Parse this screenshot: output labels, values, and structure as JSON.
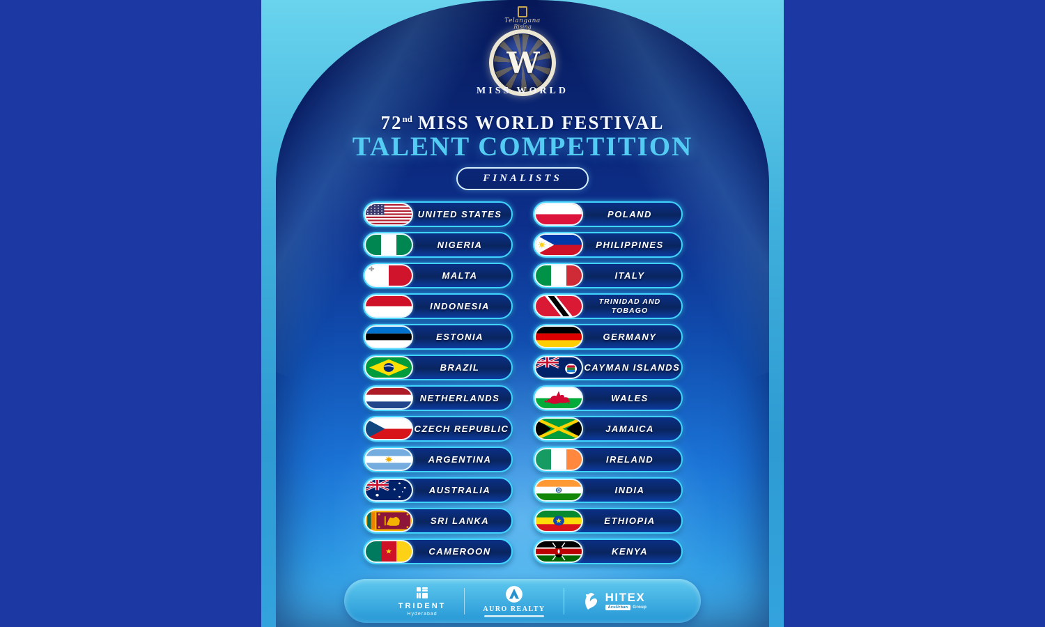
{
  "brand": {
    "crest_line1": "Telangana",
    "crest_line2": "Rising",
    "monogram": "W",
    "wordmark": "MISS WORLD"
  },
  "title": {
    "num": "72",
    "sup": "nd",
    "rest": "MISS WORLD FESTIVAL",
    "line2": "TALENT COMPETITION"
  },
  "badge": {
    "label": "FINALISTS"
  },
  "finalists": {
    "left": [
      {
        "label": "UNITED STATES",
        "flag": "us"
      },
      {
        "label": "NIGERIA",
        "flag": "ng"
      },
      {
        "label": "MALTA",
        "flag": "mt"
      },
      {
        "label": "INDONESIA",
        "flag": "id"
      },
      {
        "label": "ESTONIA",
        "flag": "ee"
      },
      {
        "label": "BRAZIL",
        "flag": "br"
      },
      {
        "label": "NETHERLANDS",
        "flag": "nl"
      },
      {
        "label": "CZECH REPUBLIC",
        "flag": "cz"
      },
      {
        "label": "ARGENTINA",
        "flag": "ar"
      },
      {
        "label": "AUSTRALIA",
        "flag": "au"
      },
      {
        "label": "SRI LANKA",
        "flag": "lk"
      },
      {
        "label": "CAMEROON",
        "flag": "cm"
      }
    ],
    "right": [
      {
        "label": "POLAND",
        "flag": "pl"
      },
      {
        "label": "PHILIPPINES",
        "flag": "ph"
      },
      {
        "label": "ITALY",
        "flag": "it"
      },
      {
        "label": "TRINIDAD AND TOBAGO",
        "flag": "tt"
      },
      {
        "label": "GERMANY",
        "flag": "de"
      },
      {
        "label": "CAYMAN ISLANDS",
        "flag": "ky"
      },
      {
        "label": "WALES",
        "flag": "wls"
      },
      {
        "label": "JAMAICA",
        "flag": "jm"
      },
      {
        "label": "IRELAND",
        "flag": "ie"
      },
      {
        "label": "INDIA",
        "flag": "in"
      },
      {
        "label": "ETHIOPIA",
        "flag": "et"
      },
      {
        "label": "KENYA",
        "flag": "ke"
      }
    ]
  },
  "sponsors": {
    "trident": {
      "name": "TRIDENT",
      "sub": "Hyderabad"
    },
    "auro": {
      "name": "AURO REALTY"
    },
    "hitex": {
      "name": "HITEX",
      "badge": "AcuUrban",
      "suffix": "Group"
    }
  },
  "colors": {
    "outer_blue": "#1B38A3",
    "frame_cyan": "#3FB0DC",
    "accent_cyan": "#53CBF3",
    "pill_border": "#40D4FF",
    "pill_fill": "#0B2F86"
  }
}
